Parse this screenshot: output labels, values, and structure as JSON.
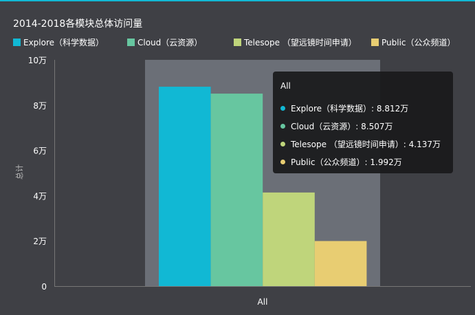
{
  "chart_data": {
    "type": "bar",
    "title": "2014-2018各模块总体访问量",
    "ylabel": "总计",
    "categories": [
      "All"
    ],
    "yticks": [
      "0",
      "2万",
      "4万",
      "6万",
      "8万",
      "10万"
    ],
    "ylim": [
      0,
      100000
    ],
    "grid": false,
    "legend_placement": "top-left",
    "series": [
      {
        "name": "Explore（科学数据）",
        "values": [
          88120
        ],
        "color": "#11b8d4"
      },
      {
        "name": "Cloud（云资源）",
        "values": [
          85070
        ],
        "color": "#67c6a0"
      },
      {
        "name": "Telesope （望远镜时间申请）",
        "values": [
          41370
        ],
        "color": "#bfd57b"
      },
      {
        "name": "Public（公众频道）",
        "values": [
          19920
        ],
        "color": "#e8cd72"
      }
    ],
    "tooltip": {
      "title": "All",
      "items": [
        "Explore（科学数据）: 8.812万",
        "Cloud（云资源）: 8.507万",
        "Telesope （望远镜时间申请）: 4.137万",
        "Public（公众频道）: 1.992万"
      ]
    }
  }
}
